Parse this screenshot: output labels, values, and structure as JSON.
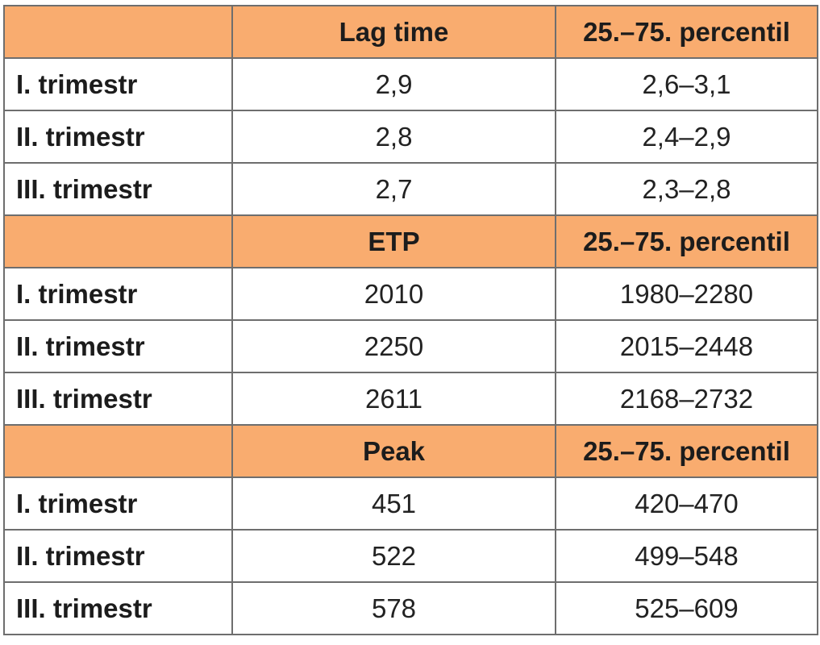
{
  "table": {
    "sections": [
      {
        "header": {
          "blank": "",
          "metric": "Lag time",
          "range": "25.–75. percentil"
        },
        "rows": [
          {
            "label": "I. trimestr",
            "value": "2,9",
            "range": "2,6–3,1"
          },
          {
            "label": "II. trimestr",
            "value": "2,8",
            "range": "2,4–2,9"
          },
          {
            "label": "III. trimestr",
            "value": "2,7",
            "range": "2,3–2,8"
          }
        ]
      },
      {
        "header": {
          "blank": "",
          "metric": "ETP",
          "range": "25.–75. percentil"
        },
        "rows": [
          {
            "label": "I. trimestr",
            "value": "2010",
            "range": "1980–2280"
          },
          {
            "label": "II. trimestr",
            "value": "2250",
            "range": "2015–2448"
          },
          {
            "label": "III. trimestr",
            "value": "2611",
            "range": "2168–2732"
          }
        ]
      },
      {
        "header": {
          "blank": "",
          "metric": "Peak",
          "range": "25.–75. percentil"
        },
        "rows": [
          {
            "label": "I. trimestr",
            "value": "451",
            "range": "420–470"
          },
          {
            "label": "II. trimestr",
            "value": "522",
            "range": "499–548"
          },
          {
            "label": "III. trimestr",
            "value": "578",
            "range": "525–609"
          }
        ]
      }
    ]
  },
  "colors": {
    "header_background": "#f9ac6f",
    "border": "#6e6e6e",
    "text": "#1c1c1c"
  }
}
